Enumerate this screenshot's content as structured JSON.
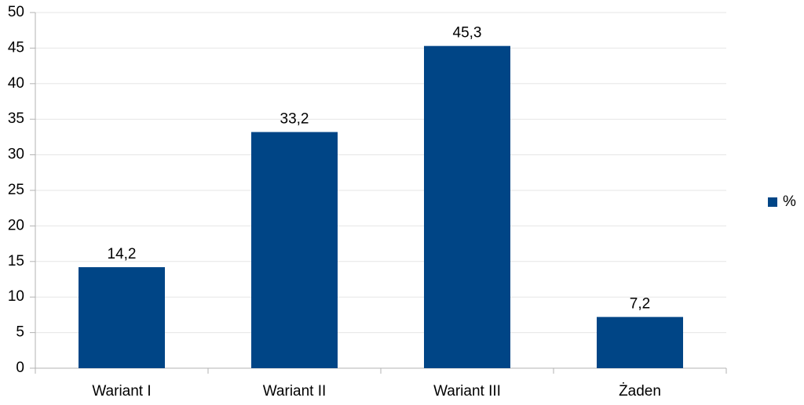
{
  "chart_data": {
    "type": "bar",
    "categories": [
      "Wariant I",
      "Wariant II",
      "Wariant III",
      "Żaden"
    ],
    "series": [
      {
        "name": "%",
        "color": "#004586",
        "values": [
          14.2,
          33.2,
          45.3,
          7.2
        ],
        "value_labels": [
          "14,2",
          "33,2",
          "45,3",
          "7,2"
        ]
      }
    ],
    "ylim": [
      0,
      50
    ],
    "yticks": [
      0,
      5,
      10,
      15,
      20,
      25,
      30,
      35,
      40,
      45,
      50
    ],
    "grid": true,
    "legend": "right"
  }
}
